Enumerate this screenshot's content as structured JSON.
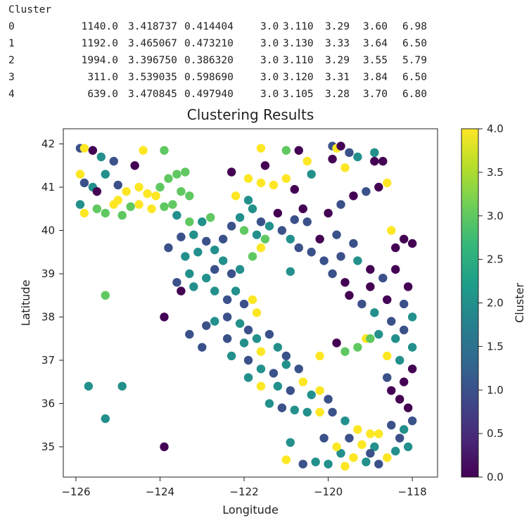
{
  "summary_table": {
    "index_name": "Cluster",
    "rows": [
      {
        "cluster": "0",
        "values": [
          "1140.0",
          "3.418737",
          "0.414404",
          "3.0",
          "3.110",
          "3.29",
          "3.60",
          "6.98"
        ]
      },
      {
        "cluster": "1",
        "values": [
          "1192.0",
          "3.465067",
          "0.473210",
          "3.0",
          "3.130",
          "3.33",
          "3.64",
          "6.50"
        ]
      },
      {
        "cluster": "2",
        "values": [
          "1994.0",
          "3.396750",
          "0.386320",
          "3.0",
          "3.110",
          "3.29",
          "3.55",
          "5.79"
        ]
      },
      {
        "cluster": "3",
        "values": [
          "311.0",
          "3.539035",
          "0.598690",
          "3.0",
          "3.120",
          "3.31",
          "3.84",
          "6.50"
        ]
      },
      {
        "cluster": "4",
        "values": [
          "639.0",
          "3.470845",
          "0.497940",
          "3.0",
          "3.105",
          "3.28",
          "3.70",
          "6.80"
        ]
      }
    ]
  },
  "chart_data": {
    "type": "scatter",
    "title": "Clustering Results",
    "xlabel": "Longitude",
    "ylabel": "Latitude",
    "xlim": [
      -126.3,
      -117.4
    ],
    "ylim": [
      34.3,
      42.35
    ],
    "xticks": [
      -126,
      -124,
      -122,
      -120,
      -118
    ],
    "xtick_labels": [
      "−126",
      "−124",
      "−122",
      "−120",
      "−118"
    ],
    "yticks": [
      35,
      36,
      37,
      38,
      39,
      40,
      41,
      42
    ],
    "ytick_labels": [
      "35",
      "36",
      "37",
      "38",
      "39",
      "40",
      "41",
      "42"
    ],
    "grid": false,
    "colorbar": {
      "label": "Cluster",
      "range": [
        0.0,
        4.0
      ],
      "ticks": [
        0.0,
        0.5,
        1.0,
        1.5,
        2.0,
        2.5,
        3.0,
        3.5,
        4.0
      ],
      "tick_labels": [
        "0.0",
        "0.5",
        "1.0",
        "1.5",
        "2.0",
        "2.5",
        "3.0",
        "3.5",
        "4.0"
      ],
      "colormap": "viridis",
      "stops": [
        "#440154",
        "#482878",
        "#3e4989",
        "#31688e",
        "#26828e",
        "#1f9e89",
        "#35b779",
        "#6ece58",
        "#b5de2b",
        "#fde725"
      ]
    },
    "points": [
      {
        "x": -125.9,
        "y": 41.9,
        "c": 1
      },
      {
        "x": -125.8,
        "y": 41.9,
        "c": 4
      },
      {
        "x": -125.6,
        "y": 41.85,
        "c": 0
      },
      {
        "x": -125.4,
        "y": 41.7,
        "c": 2
      },
      {
        "x": -125.1,
        "y": 41.6,
        "c": 1
      },
      {
        "x": -124.4,
        "y": 41.85,
        "c": 4
      },
      {
        "x": -123.9,
        "y": 41.85,
        "c": 3
      },
      {
        "x": -124.6,
        "y": 41.5,
        "c": 0
      },
      {
        "x": -125.9,
        "y": 41.3,
        "c": 4
      },
      {
        "x": -125.8,
        "y": 41.1,
        "c": 1
      },
      {
        "x": -125.6,
        "y": 41.0,
        "c": 2
      },
      {
        "x": -125.5,
        "y": 40.9,
        "c": 0
      },
      {
        "x": -125.3,
        "y": 41.3,
        "c": 2
      },
      {
        "x": -125.0,
        "y": 41.05,
        "c": 1
      },
      {
        "x": -124.8,
        "y": 40.9,
        "c": 4
      },
      {
        "x": -124.5,
        "y": 41.0,
        "c": 4
      },
      {
        "x": -124.3,
        "y": 40.85,
        "c": 4
      },
      {
        "x": -124.1,
        "y": 40.8,
        "c": 4
      },
      {
        "x": -124.0,
        "y": 41.0,
        "c": 3
      },
      {
        "x": -123.8,
        "y": 41.2,
        "c": 3
      },
      {
        "x": -123.6,
        "y": 41.3,
        "c": 3
      },
      {
        "x": -123.4,
        "y": 41.35,
        "c": 3
      },
      {
        "x": -123.5,
        "y": 40.9,
        "c": 3
      },
      {
        "x": -123.3,
        "y": 40.8,
        "c": 3
      },
      {
        "x": -123.7,
        "y": 40.6,
        "c": 3
      },
      {
        "x": -124.2,
        "y": 40.5,
        "c": 4
      },
      {
        "x": -124.7,
        "y": 40.55,
        "c": 3
      },
      {
        "x": -125.1,
        "y": 40.6,
        "c": 4
      },
      {
        "x": -125.5,
        "y": 40.5,
        "c": 3
      },
      {
        "x": -125.8,
        "y": 40.4,
        "c": 4
      },
      {
        "x": -125.9,
        "y": 40.6,
        "c": 2
      },
      {
        "x": -125.3,
        "y": 40.4,
        "c": 3
      },
      {
        "x": -124.9,
        "y": 40.35,
        "c": 3
      },
      {
        "x": -125.0,
        "y": 40.7,
        "c": 4
      },
      {
        "x": -124.5,
        "y": 40.6,
        "c": 4
      },
      {
        "x": -123.9,
        "y": 40.55,
        "c": 3
      },
      {
        "x": -123.6,
        "y": 40.35,
        "c": 2
      },
      {
        "x": -123.3,
        "y": 40.2,
        "c": 3
      },
      {
        "x": -123.0,
        "y": 40.2,
        "c": 2
      },
      {
        "x": -122.8,
        "y": 40.3,
        "c": 3
      },
      {
        "x": -123.2,
        "y": 39.9,
        "c": 2
      },
      {
        "x": -123.5,
        "y": 39.85,
        "c": 1
      },
      {
        "x": -123.8,
        "y": 39.6,
        "c": 1
      },
      {
        "x": -123.4,
        "y": 39.4,
        "c": 2
      },
      {
        "x": -123.1,
        "y": 39.5,
        "c": 2
      },
      {
        "x": -122.9,
        "y": 39.75,
        "c": 1
      },
      {
        "x": -122.7,
        "y": 39.55,
        "c": 2
      },
      {
        "x": -122.5,
        "y": 39.8,
        "c": 1
      },
      {
        "x": -123.3,
        "y": 39.0,
        "c": 2
      },
      {
        "x": -123.6,
        "y": 38.8,
        "c": 1
      },
      {
        "x": -123.2,
        "y": 38.7,
        "c": 2
      },
      {
        "x": -123.5,
        "y": 38.6,
        "c": 0
      },
      {
        "x": -122.9,
        "y": 38.9,
        "c": 2
      },
      {
        "x": -122.7,
        "y": 39.1,
        "c": 1
      },
      {
        "x": -122.5,
        "y": 39.3,
        "c": 2
      },
      {
        "x": -122.3,
        "y": 39.0,
        "c": 1
      },
      {
        "x": -122.1,
        "y": 39.1,
        "c": 2
      },
      {
        "x": -122.7,
        "y": 38.6,
        "c": 2
      },
      {
        "x": -122.4,
        "y": 38.4,
        "c": 1
      },
      {
        "x": -122.2,
        "y": 38.6,
        "c": 2
      },
      {
        "x": -122.0,
        "y": 38.3,
        "c": 1
      },
      {
        "x": -121.8,
        "y": 38.4,
        "c": 4
      },
      {
        "x": -121.7,
        "y": 38.1,
        "c": 4
      },
      {
        "x": -122.4,
        "y": 38.0,
        "c": 1
      },
      {
        "x": -122.1,
        "y": 37.85,
        "c": 2
      },
      {
        "x": -121.9,
        "y": 37.7,
        "c": 1
      },
      {
        "x": -122.7,
        "y": 37.9,
        "c": 2
      },
      {
        "x": -122.9,
        "y": 37.8,
        "c": 1
      },
      {
        "x": -123.9,
        "y": 38.0,
        "c": 0
      },
      {
        "x": -123.3,
        "y": 37.6,
        "c": 1
      },
      {
        "x": -122.4,
        "y": 37.5,
        "c": 1
      },
      {
        "x": -122.0,
        "y": 37.4,
        "c": 2
      },
      {
        "x": -121.7,
        "y": 37.5,
        "c": 2
      },
      {
        "x": -121.4,
        "y": 37.6,
        "c": 1
      },
      {
        "x": -123.0,
        "y": 37.3,
        "c": 1
      },
      {
        "x": -122.3,
        "y": 37.1,
        "c": 2
      },
      {
        "x": -121.9,
        "y": 37.0,
        "c": 1
      },
      {
        "x": -121.6,
        "y": 37.2,
        "c": 4
      },
      {
        "x": -121.2,
        "y": 37.3,
        "c": 2
      },
      {
        "x": -121.0,
        "y": 37.1,
        "c": 1
      },
      {
        "x": -121.6,
        "y": 36.8,
        "c": 2
      },
      {
        "x": -121.3,
        "y": 36.7,
        "c": 1
      },
      {
        "x": -121.0,
        "y": 36.9,
        "c": 2
      },
      {
        "x": -120.7,
        "y": 36.8,
        "c": 1
      },
      {
        "x": -121.2,
        "y": 36.4,
        "c": 2
      },
      {
        "x": -120.9,
        "y": 36.3,
        "c": 1
      },
      {
        "x": -120.6,
        "y": 36.5,
        "c": 4
      },
      {
        "x": -120.4,
        "y": 36.2,
        "c": 2
      },
      {
        "x": -120.2,
        "y": 36.3,
        "c": 4
      },
      {
        "x": -120.0,
        "y": 36.1,
        "c": 1
      },
      {
        "x": -121.6,
        "y": 36.4,
        "c": 4
      },
      {
        "x": -121.9,
        "y": 36.6,
        "c": 2
      },
      {
        "x": -121.4,
        "y": 36.0,
        "c": 2
      },
      {
        "x": -121.1,
        "y": 35.9,
        "c": 1
      },
      {
        "x": -120.8,
        "y": 35.85,
        "c": 2
      },
      {
        "x": -120.5,
        "y": 35.8,
        "c": 2
      },
      {
        "x": -120.2,
        "y": 35.8,
        "c": 4
      },
      {
        "x": -119.9,
        "y": 35.8,
        "c": 1
      },
      {
        "x": -119.6,
        "y": 35.6,
        "c": 2
      },
      {
        "x": -119.3,
        "y": 35.4,
        "c": 4
      },
      {
        "x": -119.0,
        "y": 35.3,
        "c": 4
      },
      {
        "x": -118.8,
        "y": 35.3,
        "c": 4
      },
      {
        "x": -119.5,
        "y": 35.2,
        "c": 1
      },
      {
        "x": -119.2,
        "y": 35.05,
        "c": 4
      },
      {
        "x": -118.9,
        "y": 35.0,
        "c": 2
      },
      {
        "x": -119.7,
        "y": 34.85,
        "c": 2
      },
      {
        "x": -119.4,
        "y": 34.75,
        "c": 4
      },
      {
        "x": -119.1,
        "y": 34.65,
        "c": 2
      },
      {
        "x": -118.8,
        "y": 34.6,
        "c": 1
      },
      {
        "x": -118.6,
        "y": 34.75,
        "c": 4
      },
      {
        "x": -118.4,
        "y": 34.9,
        "c": 2
      },
      {
        "x": -120.3,
        "y": 34.65,
        "c": 2
      },
      {
        "x": -120.6,
        "y": 34.6,
        "c": 1
      },
      {
        "x": -121.0,
        "y": 34.7,
        "c": 4
      },
      {
        "x": -120.0,
        "y": 34.6,
        "c": 2
      },
      {
        "x": -119.6,
        "y": 34.55,
        "c": 4
      },
      {
        "x": -120.9,
        "y": 35.1,
        "c": 2
      },
      {
        "x": -120.1,
        "y": 35.2,
        "c": 1
      },
      {
        "x": -118.2,
        "y": 35.4,
        "c": 2
      },
      {
        "x": -118.0,
        "y": 35.6,
        "c": 1
      },
      {
        "x": -118.1,
        "y": 35.9,
        "c": 0
      },
      {
        "x": -118.3,
        "y": 36.1,
        "c": 0
      },
      {
        "x": -118.5,
        "y": 36.3,
        "c": 0
      },
      {
        "x": -118.2,
        "y": 36.5,
        "c": 0
      },
      {
        "x": -118.6,
        "y": 36.6,
        "c": 1
      },
      {
        "x": -118.0,
        "y": 36.8,
        "c": 0
      },
      {
        "x": -118.3,
        "y": 37.0,
        "c": 2
      },
      {
        "x": -118.6,
        "y": 37.1,
        "c": 4
      },
      {
        "x": -118.0,
        "y": 37.3,
        "c": 2
      },
      {
        "x": -118.4,
        "y": 37.5,
        "c": 2
      },
      {
        "x": -118.8,
        "y": 37.6,
        "c": 2
      },
      {
        "x": -119.1,
        "y": 37.5,
        "c": 4
      },
      {
        "x": -118.2,
        "y": 37.7,
        "c": 1
      },
      {
        "x": -118.5,
        "y": 37.9,
        "c": 1
      },
      {
        "x": -118.0,
        "y": 38.0,
        "c": 2
      },
      {
        "x": -118.2,
        "y": 38.3,
        "c": 1
      },
      {
        "x": -118.6,
        "y": 38.4,
        "c": 0
      },
      {
        "x": -118.9,
        "y": 38.1,
        "c": 2
      },
      {
        "x": -119.2,
        "y": 38.3,
        "c": 1
      },
      {
        "x": -119.5,
        "y": 38.5,
        "c": 0
      },
      {
        "x": -119.0,
        "y": 38.7,
        "c": 0
      },
      {
        "x": -118.7,
        "y": 38.9,
        "c": 1
      },
      {
        "x": -118.4,
        "y": 39.1,
        "c": 0
      },
      {
        "x": -118.1,
        "y": 38.7,
        "c": 0
      },
      {
        "x": -119.6,
        "y": 38.8,
        "c": 0
      },
      {
        "x": -119.9,
        "y": 39.0,
        "c": 1
      },
      {
        "x": -120.1,
        "y": 39.3,
        "c": 1
      },
      {
        "x": -119.7,
        "y": 39.4,
        "c": 1
      },
      {
        "x": -119.3,
        "y": 39.3,
        "c": 2
      },
      {
        "x": -119.0,
        "y": 39.1,
        "c": 0
      },
      {
        "x": -120.4,
        "y": 39.5,
        "c": 1
      },
      {
        "x": -120.7,
        "y": 39.6,
        "c": 1
      },
      {
        "x": -120.9,
        "y": 39.8,
        "c": 2
      },
      {
        "x": -121.1,
        "y": 40.0,
        "c": 1
      },
      {
        "x": -121.4,
        "y": 40.1,
        "c": 2
      },
      {
        "x": -121.6,
        "y": 40.2,
        "c": 1
      },
      {
        "x": -120.2,
        "y": 39.8,
        "c": 0
      },
      {
        "x": -119.8,
        "y": 39.9,
        "c": 1
      },
      {
        "x": -119.4,
        "y": 39.7,
        "c": 1
      },
      {
        "x": -120.5,
        "y": 40.2,
        "c": 1
      },
      {
        "x": -120.0,
        "y": 40.4,
        "c": 0
      },
      {
        "x": -119.7,
        "y": 40.6,
        "c": 1
      },
      {
        "x": -119.4,
        "y": 40.8,
        "c": 0
      },
      {
        "x": -119.1,
        "y": 40.9,
        "c": 1
      },
      {
        "x": -118.8,
        "y": 41.0,
        "c": 0
      },
      {
        "x": -118.6,
        "y": 41.1,
        "c": 4
      },
      {
        "x": -120.6,
        "y": 40.5,
        "c": 0
      },
      {
        "x": -121.8,
        "y": 40.5,
        "c": 2
      },
      {
        "x": -122.2,
        "y": 40.8,
        "c": 4
      },
      {
        "x": -121.9,
        "y": 40.7,
        "c": 2
      },
      {
        "x": -121.6,
        "y": 41.1,
        "c": 4
      },
      {
        "x": -121.3,
        "y": 41.05,
        "c": 4
      },
      {
        "x": -121.0,
        "y": 41.2,
        "c": 4
      },
      {
        "x": -121.9,
        "y": 41.2,
        "c": 4
      },
      {
        "x": -122.3,
        "y": 41.35,
        "c": 0
      },
      {
        "x": -121.5,
        "y": 41.5,
        "c": 0
      },
      {
        "x": -121.6,
        "y": 41.9,
        "c": 4
      },
      {
        "x": -120.5,
        "y": 41.6,
        "c": 4
      },
      {
        "x": -120.4,
        "y": 41.3,
        "c": 2
      },
      {
        "x": -120.8,
        "y": 40.95,
        "c": 0
      },
      {
        "x": -121.0,
        "y": 41.85,
        "c": 3
      },
      {
        "x": -120.7,
        "y": 41.85,
        "c": 0
      },
      {
        "x": -119.9,
        "y": 41.95,
        "c": 1
      },
      {
        "x": -119.8,
        "y": 41.9,
        "c": 4
      },
      {
        "x": -119.7,
        "y": 41.95,
        "c": 0
      },
      {
        "x": -119.5,
        "y": 41.8,
        "c": 1
      },
      {
        "x": -119.3,
        "y": 41.7,
        "c": 2
      },
      {
        "x": -119.6,
        "y": 41.45,
        "c": 4
      },
      {
        "x": -118.9,
        "y": 41.6,
        "c": 0
      },
      {
        "x": -118.7,
        "y": 41.6,
        "c": 0
      },
      {
        "x": -118.9,
        "y": 41.8,
        "c": 2
      },
      {
        "x": -119.9,
        "y": 41.65,
        "c": 0
      },
      {
        "x": -118.5,
        "y": 40.0,
        "c": 4
      },
      {
        "x": -118.2,
        "y": 39.8,
        "c": 0
      },
      {
        "x": -118.0,
        "y": 39.7,
        "c": 0
      },
      {
        "x": -118.4,
        "y": 39.6,
        "c": 0
      },
      {
        "x": -121.6,
        "y": 39.6,
        "c": 4
      },
      {
        "x": -121.8,
        "y": 39.4,
        "c": 3
      },
      {
        "x": -121.5,
        "y": 39.8,
        "c": 3
      },
      {
        "x": -119.0,
        "y": 37.5,
        "c": 3
      },
      {
        "x": -119.3,
        "y": 37.3,
        "c": 3
      },
      {
        "x": -119.6,
        "y": 37.2,
        "c": 3
      },
      {
        "x": -120.9,
        "y": 39.05,
        "c": 2
      },
      {
        "x": -119.8,
        "y": 37.4,
        "c": 0
      },
      {
        "x": -120.2,
        "y": 37.1,
        "c": 4
      },
      {
        "x": -125.3,
        "y": 38.5,
        "c": 3
      },
      {
        "x": -125.7,
        "y": 36.4,
        "c": 2
      },
      {
        "x": -124.9,
        "y": 36.4,
        "c": 2
      },
      {
        "x": -125.3,
        "y": 35.65,
        "c": 2
      },
      {
        "x": -123.9,
        "y": 35.0,
        "c": 0
      },
      {
        "x": -122.1,
        "y": 40.3,
        "c": 2
      },
      {
        "x": -122.0,
        "y": 40.0,
        "c": 3
      },
      {
        "x": -121.7,
        "y": 39.9,
        "c": 2
      },
      {
        "x": -122.3,
        "y": 40.1,
        "c": 1
      },
      {
        "x": -121.2,
        "y": 40.4,
        "c": 0
      },
      {
        "x": -120.8,
        "y": 40.25,
        "c": 1
      },
      {
        "x": -118.1,
        "y": 35.0,
        "c": 2
      },
      {
        "x": -118.3,
        "y": 35.2,
        "c": 1
      },
      {
        "x": -118.5,
        "y": 35.5,
        "c": 1
      },
      {
        "x": -119.8,
        "y": 35.0,
        "c": 4
      },
      {
        "x": -119.0,
        "y": 34.85,
        "c": 1
      }
    ]
  }
}
